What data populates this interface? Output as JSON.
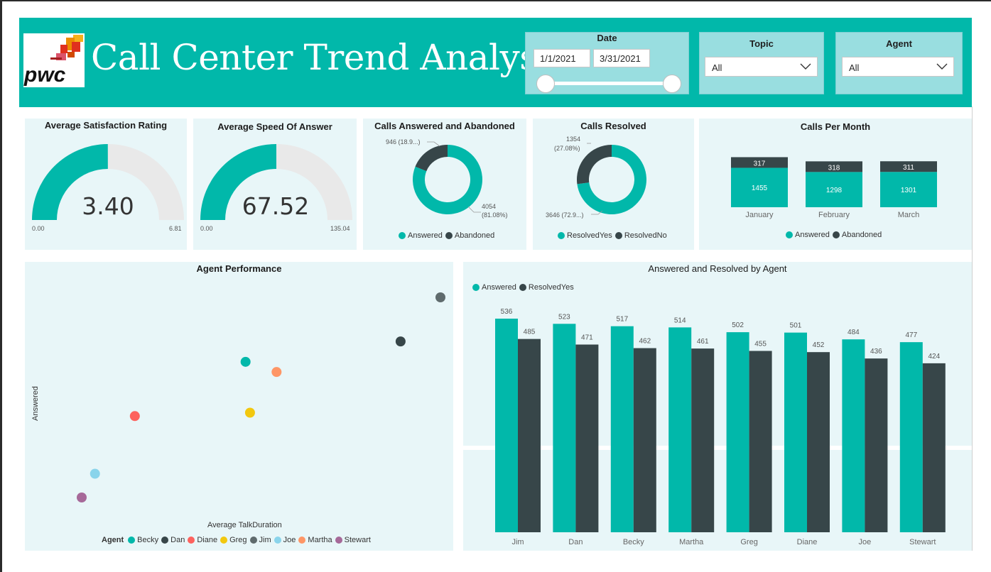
{
  "app": {
    "title": "Call Center Trend Analysis",
    "logo_text": "pwc",
    "brand_color": "#01b8aa"
  },
  "filters": {
    "date": {
      "title": "Date",
      "start": "1/1/2021",
      "end": "3/31/2021"
    },
    "topic": {
      "title": "Topic",
      "value": "All"
    },
    "agent": {
      "title": "Agent",
      "value": "All"
    }
  },
  "colors": {
    "answered": "#01b8aa",
    "dark": "#374649",
    "gauge_track": "#e9e9e9",
    "card_bg": "#e8f6f8"
  },
  "satisfaction": {
    "title": "Average Satisfaction Rating",
    "value": 3.4,
    "value_label": "3.40",
    "min_label": "0.00",
    "max_label": "6.81",
    "max": 6.81
  },
  "speed": {
    "title": "Average Speed Of Answer",
    "value": 67.52,
    "value_label": "67.52",
    "min_label": "0.00",
    "max_label": "135.04",
    "max": 135.04
  },
  "answered_abandoned": {
    "title": "Calls Answered and Abandoned",
    "abandoned_label": "946 (18.9...)",
    "answered_label_1": "4054",
    "answered_label_2": "(81.08%)",
    "legend": [
      "Answered",
      "Abandoned"
    ]
  },
  "resolved": {
    "title": "Calls Resolved",
    "no_label_1": "1354",
    "no_label_2": "(27.08%)",
    "yes_label": "3646 (72.9...)",
    "legend": [
      "ResolvedYes",
      "ResolvedNo"
    ]
  },
  "calls_per_month": {
    "title": "Calls Per Month",
    "legend": [
      "Answered",
      "Abandoned"
    ]
  },
  "agent_performance": {
    "title": "Agent Performance",
    "xlabel": "Average TalkDuration",
    "ylabel": "Answered",
    "legend_title": "Agent"
  },
  "answered_resolved": {
    "title": "Answered and Resolved by Agent",
    "legend": [
      "Answered",
      "ResolvedYes"
    ]
  },
  "chart_data": [
    {
      "type": "pie",
      "title": "Calls Answered and Abandoned",
      "categories": [
        "Answered",
        "Abandoned"
      ],
      "values": [
        4054,
        946
      ],
      "colors": [
        "#01b8aa",
        "#374649"
      ]
    },
    {
      "type": "pie",
      "title": "Calls Resolved",
      "categories": [
        "ResolvedYes",
        "ResolvedNo"
      ],
      "values": [
        3646,
        1354
      ],
      "colors": [
        "#01b8aa",
        "#374649"
      ]
    },
    {
      "type": "bar",
      "stacked": true,
      "title": "Calls Per Month",
      "categories": [
        "January",
        "February",
        "March"
      ],
      "series": [
        {
          "name": "Answered",
          "values": [
            1455,
            1298,
            1301
          ],
          "color": "#01b8aa"
        },
        {
          "name": "Abandoned",
          "values": [
            317,
            318,
            311
          ],
          "color": "#374649"
        }
      ]
    },
    {
      "type": "scatter",
      "title": "Agent Performance",
      "xlabel": "Average TalkDuration",
      "ylabel": "Answered",
      "points": [
        {
          "name": "Becky",
          "x": 0.55,
          "y": 517,
          "color": "#01b8aa"
        },
        {
          "name": "Dan",
          "x": 0.9,
          "y": 523,
          "color": "#374649"
        },
        {
          "name": "Diane",
          "x": 0.3,
          "y": 501,
          "color": "#fd625e"
        },
        {
          "name": "Greg",
          "x": 0.56,
          "y": 502,
          "color": "#f2c80f"
        },
        {
          "name": "Jim",
          "x": 0.99,
          "y": 536,
          "color": "#5f6b6d"
        },
        {
          "name": "Joe",
          "x": 0.21,
          "y": 484,
          "color": "#8ad4eb"
        },
        {
          "name": "Martha",
          "x": 0.62,
          "y": 514,
          "color": "#fe9666"
        },
        {
          "name": "Stewart",
          "x": 0.18,
          "y": 477,
          "color": "#a66999"
        }
      ]
    },
    {
      "type": "bar",
      "title": "Answered and Resolved by Agent",
      "categories": [
        "Jim",
        "Dan",
        "Becky",
        "Martha",
        "Greg",
        "Diane",
        "Joe",
        "Stewart"
      ],
      "series": [
        {
          "name": "Answered",
          "values": [
            536,
            523,
            517,
            514,
            502,
            501,
            484,
            477
          ],
          "color": "#01b8aa"
        },
        {
          "name": "ResolvedYes",
          "values": [
            485,
            471,
            462,
            461,
            455,
            452,
            436,
            424
          ],
          "color": "#374649"
        }
      ],
      "ylim": [
        0,
        536
      ]
    }
  ]
}
